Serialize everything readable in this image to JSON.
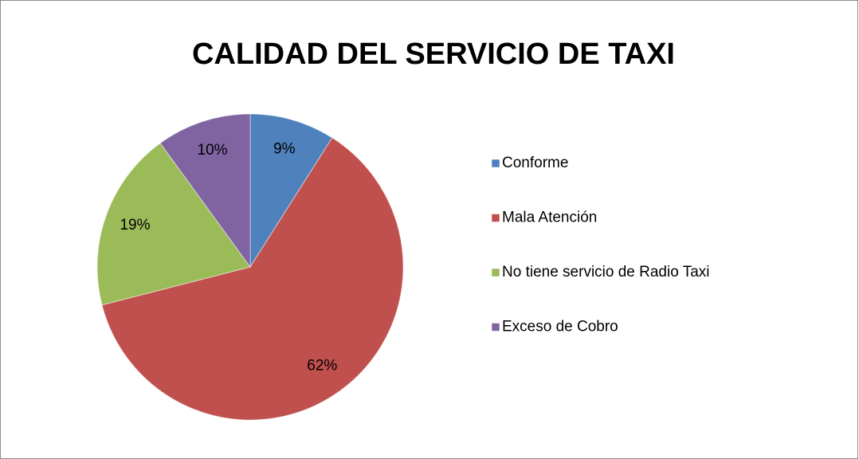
{
  "chart_data": {
    "type": "pie",
    "title": "CALIDAD DEL SERVICIO DE TAXI",
    "categories": [
      "Conforme",
      "Mala Atención",
      "No tiene servicio de Radio Taxi",
      "Exceso de Cobro"
    ],
    "values": [
      9,
      62,
      19,
      10
    ],
    "value_labels": [
      "9%",
      "62%",
      "19%",
      "10%"
    ],
    "colors": [
      "#4f81bd",
      "#c0504d",
      "#9bbb59",
      "#8064a2"
    ],
    "legend": "right"
  }
}
